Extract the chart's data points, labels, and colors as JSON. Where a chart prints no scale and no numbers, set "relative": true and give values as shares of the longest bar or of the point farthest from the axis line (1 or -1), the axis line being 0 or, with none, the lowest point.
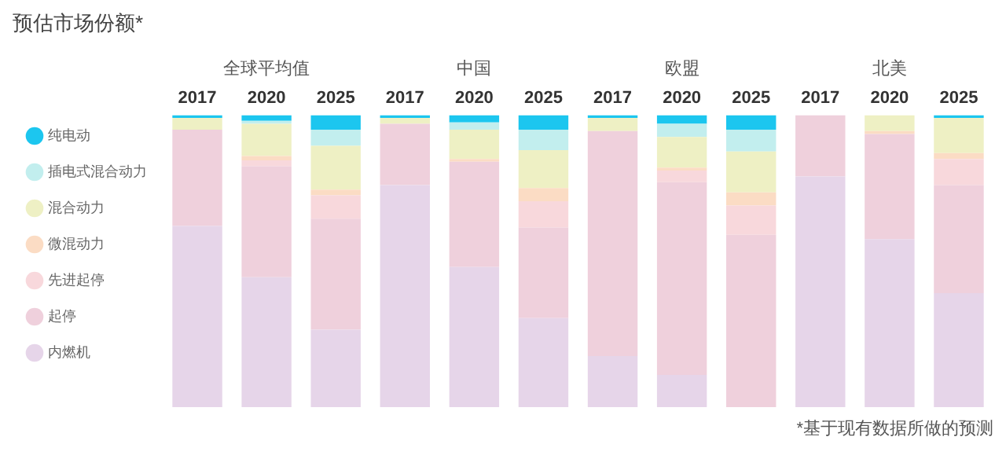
{
  "chart_data": {
    "type": "bar",
    "title": "预估市场份额*",
    "stacked": true,
    "relative": true,
    "grid": false,
    "legend": "left",
    "marker": "circle",
    "categories": [
      "2017",
      "2020",
      "2025",
      "2017",
      "2020",
      "2025",
      "2017",
      "2020",
      "2025",
      "2017",
      "2020",
      "2025"
    ],
    "annotations": [
      "全球平均值",
      "中国",
      "欧盟",
      "北美",
      "*基于现有数据所做的预测"
    ],
    "series": [
      {
        "name": "内燃机",
        "color": "#e6d5e9",
        "values": [
          0.62,
          0.445,
          0.265,
          0.76,
          0.48,
          0.305,
          0.175,
          0.11,
          0,
          0.79,
          0.575,
          0.39
        ]
      },
      {
        "name": "起停",
        "color": "#efd0dc",
        "values": [
          0.33,
          0.38,
          0.38,
          0.21,
          0.36,
          0.31,
          0.77,
          0.66,
          0.59,
          0.21,
          0.36,
          0.37
        ]
      },
      {
        "name": "先进起停",
        "color": "#f8d8dc",
        "values": [
          0,
          0.02,
          0.08,
          0,
          0,
          0.09,
          0,
          0.04,
          0.1,
          0,
          0,
          0.09
        ]
      },
      {
        "name": "微混动力",
        "color": "#fbdcc4",
        "values": [
          0,
          0.015,
          0.02,
          0,
          0.01,
          0.045,
          0,
          0.01,
          0.045,
          0,
          0.01,
          0.02
        ]
      },
      {
        "name": "混合动力",
        "color": "#eef0c4",
        "values": [
          0.04,
          0.11,
          0.15,
          0.02,
          0.1,
          0.13,
          0.045,
          0.105,
          0.14,
          0,
          0.055,
          0.12
        ]
      },
      {
        "name": "插电式混合动力",
        "color": "#c2eeee",
        "values": [
          0,
          0.01,
          0.055,
          0,
          0.025,
          0.07,
          0,
          0.045,
          0.075,
          0,
          0,
          0
        ]
      },
      {
        "name": "纯电动",
        "color": "#1cc6ef",
        "values": [
          0.01,
          0.02,
          0.05,
          0.01,
          0.025,
          0.05,
          0.01,
          0.03,
          0.05,
          0,
          0,
          0.01
        ]
      }
    ]
  }
}
